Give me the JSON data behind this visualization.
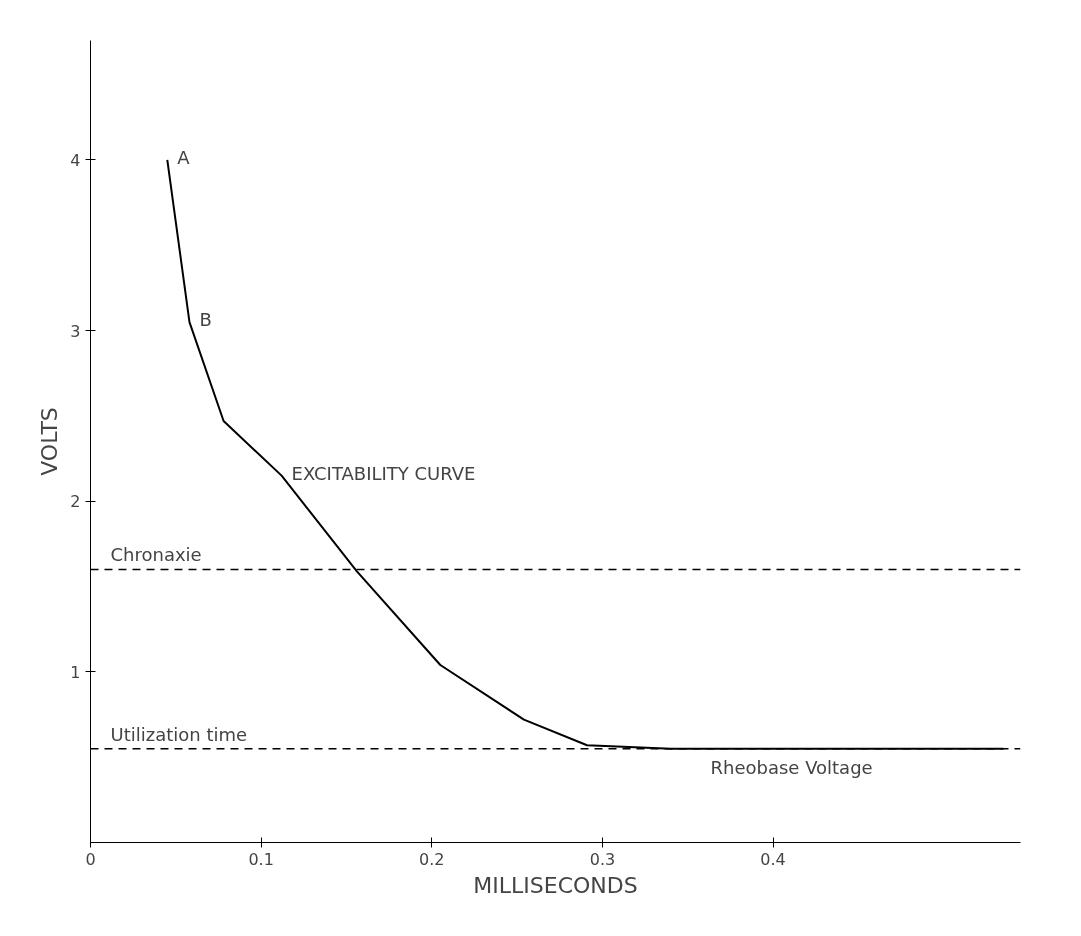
{
  "chart_data": {
    "type": "line",
    "xlabel": "MILLISECONDS",
    "ylabel": "VOLTS",
    "x": [
      0.045,
      0.058,
      0.078,
      0.112,
      0.156,
      0.205,
      0.254,
      0.291,
      0.34,
      0.535
    ],
    "series": [
      {
        "color": "#000000",
        "values": [
          4.0,
          3.05,
          2.47,
          2.15,
          1.59,
          1.04,
          0.72,
          0.57,
          0.55,
          0.55
        ]
      }
    ],
    "xlim": [
      0,
      0.545
    ],
    "ylim": [
      0,
      4.7
    ],
    "xticks": [
      0,
      0.1,
      0.2,
      0.3,
      0.4
    ],
    "yticks": [
      1,
      2,
      3,
      4
    ],
    "ref_lines": [
      {
        "axis": "y",
        "value": 1.6,
        "label": "Chronaxie",
        "line_style": "dashed"
      },
      {
        "axis": "y",
        "value": 0.55,
        "label": "Utilization time",
        "line_style": "dashed"
      }
    ],
    "annotations": [
      {
        "text": "A",
        "x": 0.045,
        "y": 4.0
      },
      {
        "text": "B",
        "x": 0.058,
        "y": 3.05
      },
      {
        "text": "EXCITABILITY CURVE",
        "x": 0.112,
        "y": 2.15
      },
      "Rheobase Voltage"
    ],
    "grid": false,
    "marker": "none",
    "line_style": "solid"
  }
}
